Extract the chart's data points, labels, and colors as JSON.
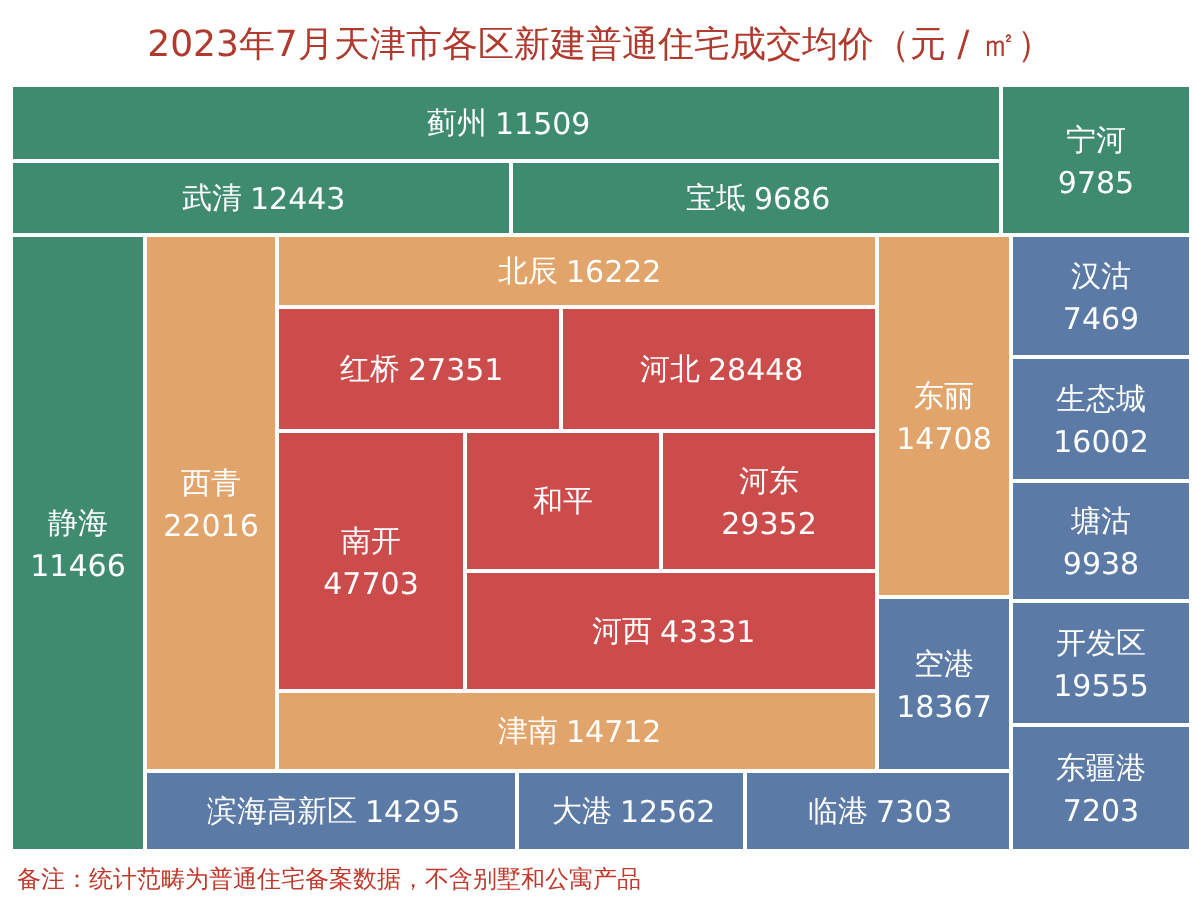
{
  "chart_data": {
    "type": "other",
    "title": "2023年7月天津市各区新建普通住宅成交均价（元 / ㎡）",
    "categories": [
      "蓟州",
      "武清",
      "宝坻",
      "宁河",
      "静海",
      "西青",
      "北辰",
      "红桥",
      "河北",
      "南开",
      "和平",
      "河东",
      "河西",
      "津南",
      "东丽",
      "空港",
      "汉沽",
      "生态城",
      "塘沽",
      "开发区",
      "东疆港",
      "滨海高新区",
      "大港",
      "临港"
    ],
    "values": [
      11509,
      12443,
      9686,
      9785,
      11466,
      22016,
      16222,
      27351,
      28448,
      47703,
      null,
      29352,
      43331,
      14712,
      14708,
      18367,
      7469,
      16002,
      9938,
      19555,
      7203,
      14295,
      12562,
      7303
    ],
    "colors": [
      "#3f8b6f",
      "#3f8b6f",
      "#3f8b6f",
      "#3f8b6f",
      "#3f8b6f",
      "#e1a46a",
      "#e1a46a",
      "#cc4b4b",
      "#cc4b4b",
      "#cc4b4b",
      "#cc4b4b",
      "#cc4b4b",
      "#cc4b4b",
      "#e1a46a",
      "#e1a46a",
      "#5b7aa6",
      "#5b7aa6",
      "#5b7aa6",
      "#5b7aa6",
      "#5b7aa6",
      "#5b7aa6",
      "#5b7aa6",
      "#5b7aa6",
      "#5b7aa6"
    ],
    "data_labels": true,
    "annotations": [
      "备注：统计范畴为普通住宅备案数据，不含别墅和公寓产品"
    ]
  }
}
